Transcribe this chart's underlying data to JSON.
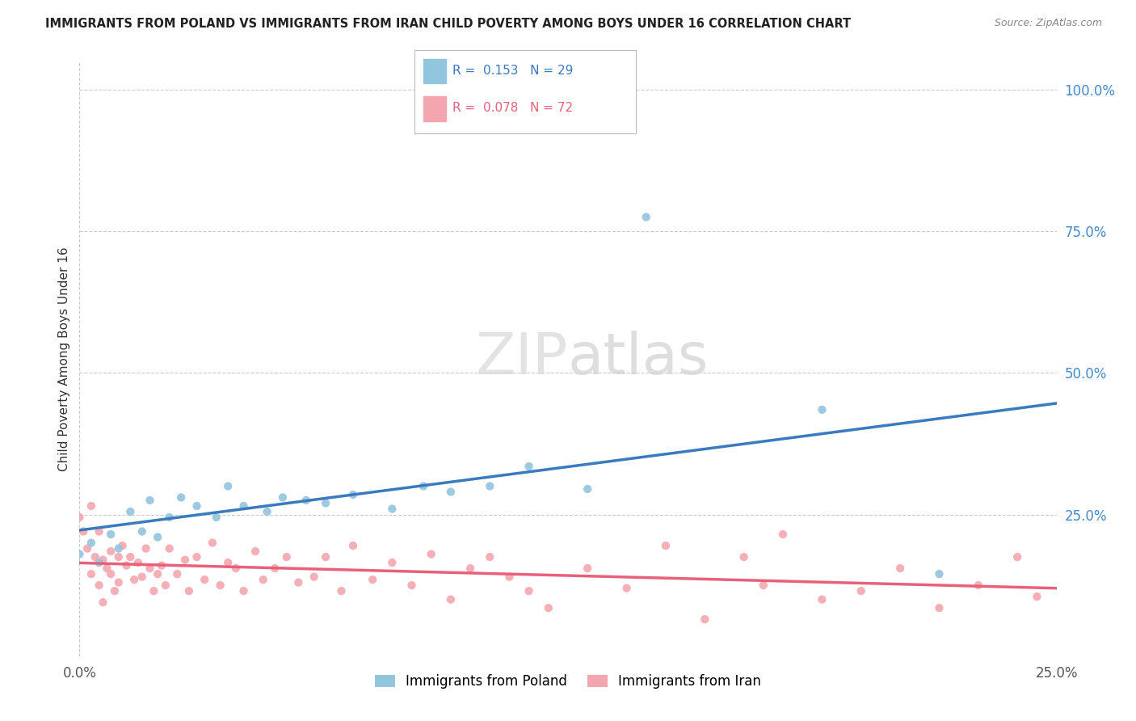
{
  "title": "IMMIGRANTS FROM POLAND VS IMMIGRANTS FROM IRAN CHILD POVERTY AMONG BOYS UNDER 16 CORRELATION CHART",
  "source": "Source: ZipAtlas.com",
  "ylabel": "Child Poverty Among Boys Under 16",
  "xlim": [
    0.0,
    0.25
  ],
  "ylim": [
    0.0,
    1.05
  ],
  "ytick_vals": [
    0.25,
    0.5,
    0.75,
    1.0
  ],
  "ytick_labels": [
    "25.0%",
    "50.0%",
    "75.0%",
    "100.0%"
  ],
  "xtick_vals": [
    0.0,
    0.25
  ],
  "xtick_labels": [
    "0.0%",
    "25.0%"
  ],
  "poland_R": 0.153,
  "poland_N": 29,
  "iran_R": 0.078,
  "iran_N": 72,
  "poland_color": "#92c5de",
  "iran_color": "#f4a6b0",
  "poland_line_color": "#3a7abf",
  "iran_line_color": "#e8607a",
  "watermark_zip": "ZIP",
  "watermark_atlas": "atlas",
  "legend_labels": [
    "Immigrants from Poland",
    "Immigrants from Iran"
  ],
  "poland_x": [
    0.0,
    0.003,
    0.005,
    0.008,
    0.01,
    0.013,
    0.016,
    0.018,
    0.02,
    0.023,
    0.026,
    0.03,
    0.035,
    0.038,
    0.042,
    0.048,
    0.052,
    0.058,
    0.063,
    0.07,
    0.08,
    0.088,
    0.095,
    0.105,
    0.115,
    0.13,
    0.145,
    0.19,
    0.22
  ],
  "poland_y": [
    0.18,
    0.2,
    0.165,
    0.215,
    0.19,
    0.255,
    0.22,
    0.275,
    0.21,
    0.245,
    0.28,
    0.265,
    0.245,
    0.3,
    0.265,
    0.255,
    0.28,
    0.275,
    0.27,
    0.285,
    0.26,
    0.3,
    0.29,
    0.3,
    0.335,
    0.295,
    0.775,
    0.435,
    0.145
  ],
  "iran_x": [
    0.0,
    0.001,
    0.002,
    0.003,
    0.003,
    0.004,
    0.005,
    0.005,
    0.006,
    0.006,
    0.007,
    0.008,
    0.008,
    0.009,
    0.01,
    0.01,
    0.011,
    0.012,
    0.013,
    0.014,
    0.015,
    0.016,
    0.017,
    0.018,
    0.019,
    0.02,
    0.021,
    0.022,
    0.023,
    0.025,
    0.027,
    0.028,
    0.03,
    0.032,
    0.034,
    0.036,
    0.038,
    0.04,
    0.042,
    0.045,
    0.047,
    0.05,
    0.053,
    0.056,
    0.06,
    0.063,
    0.067,
    0.07,
    0.075,
    0.08,
    0.085,
    0.09,
    0.095,
    0.1,
    0.105,
    0.11,
    0.115,
    0.12,
    0.13,
    0.14,
    0.15,
    0.16,
    0.17,
    0.175,
    0.18,
    0.19,
    0.2,
    0.21,
    0.22,
    0.23,
    0.24,
    0.245
  ],
  "iran_y": [
    0.245,
    0.22,
    0.19,
    0.265,
    0.145,
    0.175,
    0.125,
    0.22,
    0.095,
    0.17,
    0.155,
    0.145,
    0.185,
    0.115,
    0.175,
    0.13,
    0.195,
    0.16,
    0.175,
    0.135,
    0.165,
    0.14,
    0.19,
    0.155,
    0.115,
    0.145,
    0.16,
    0.125,
    0.19,
    0.145,
    0.17,
    0.115,
    0.175,
    0.135,
    0.2,
    0.125,
    0.165,
    0.155,
    0.115,
    0.185,
    0.135,
    0.155,
    0.175,
    0.13,
    0.14,
    0.175,
    0.115,
    0.195,
    0.135,
    0.165,
    0.125,
    0.18,
    0.1,
    0.155,
    0.175,
    0.14,
    0.115,
    0.085,
    0.155,
    0.12,
    0.195,
    0.065,
    0.175,
    0.125,
    0.215,
    0.1,
    0.115,
    0.155,
    0.085,
    0.125,
    0.175,
    0.105
  ]
}
